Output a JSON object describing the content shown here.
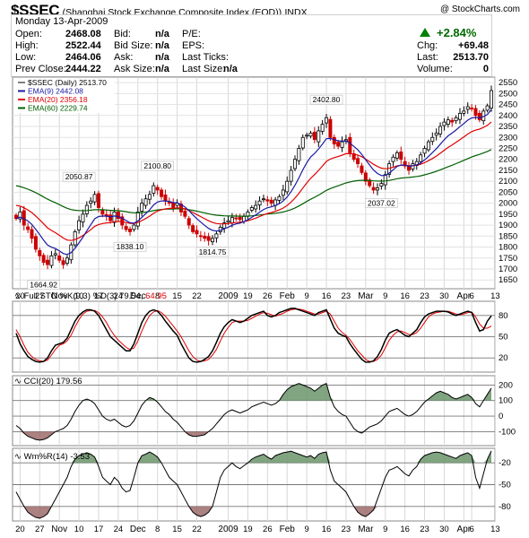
{
  "header": {
    "symbol": "$SSEC",
    "description": "(Shanghai Stock Exchange Composite Index (EOD))",
    "exchange": "INDX",
    "copyright": "@ StockCharts.com"
  },
  "quote": {
    "date": "Monday  13-Apr-2009",
    "open_label": "Open:",
    "open": "2468.08",
    "high_label": "High:",
    "high": "2522.44",
    "low_label": "Low:",
    "low": "2464.06",
    "prev_label": "Prev Close:",
    "prev": "2444.22",
    "bid_label": "Bid:",
    "bid": "n/a",
    "bidsize_label": "Bid Size:",
    "bidsize": "n/a",
    "ask_label": "Ask:",
    "ask": "n/a",
    "asksize_label": "Ask Size:",
    "asksize": "n/a",
    "pe_label": "P/E:",
    "eps_label": "EPS:",
    "lastticks_label": "Last Ticks:",
    "lastsize_label": "Last Size:",
    "lastsize": "n/a",
    "change_pct": "+2.84%",
    "chg_label": "Chg:",
    "chg": "+69.48",
    "last_label": "Last:",
    "last": "2513.70",
    "volume_label": "Volume:",
    "volume": "0"
  },
  "colors": {
    "up": "#000000",
    "down": "#cc0000",
    "ema20": "#e00000",
    "ema9": "#1a1aa6",
    "ema60": "#006000",
    "fill": "#5f8f5f"
  },
  "chart_data": [
    {
      "type": "line",
      "panel": "price",
      "legend": [
        "$SSEC (Daily) 2513.70",
        "EMA(9) 2442.08",
        "EMA(20) 2356.18",
        "EMA(60) 2229.74"
      ],
      "yticks": [
        1650,
        1700,
        1750,
        1800,
        1850,
        1900,
        1950,
        2000,
        2050,
        2100,
        2150,
        2200,
        2250,
        2300,
        2350,
        2400,
        2450,
        2500,
        2550
      ],
      "ylim": [
        1610,
        2575
      ],
      "xticks": [
        {
          "label": "20",
          "i": 1
        },
        {
          "label": "27",
          "i": 6
        },
        {
          "label": "Nov",
          "i": 11
        },
        {
          "label": "10",
          "i": 16
        },
        {
          "label": "17",
          "i": 21
        },
        {
          "label": "24",
          "i": 26
        },
        {
          "label": "Dec",
          "i": 31
        },
        {
          "label": "8",
          "i": 36
        },
        {
          "label": "15",
          "i": 41
        },
        {
          "label": "22",
          "i": 46
        },
        {
          "label": "2009",
          "i": 54
        },
        {
          "label": "19",
          "i": 59
        },
        {
          "label": "26",
          "i": 64
        },
        {
          "label": "Feb",
          "i": 69
        },
        {
          "label": "9",
          "i": 74
        },
        {
          "label": "16",
          "i": 79
        },
        {
          "label": "23",
          "i": 84
        },
        {
          "label": "Mar",
          "i": 89
        },
        {
          "label": "9",
          "i": 94
        },
        {
          "label": "16",
          "i": 99
        },
        {
          "label": "23",
          "i": 104
        },
        {
          "label": "30",
          "i": 109
        },
        {
          "label": "Apr",
          "i": 114
        },
        {
          "label": "6",
          "i": 116
        },
        {
          "label": "13",
          "i": 122
        }
      ],
      "price_labels": [
        {
          "text": "1664.92",
          "i": 7,
          "v": 1664.92,
          "pos": "below"
        },
        {
          "text": "2050.87",
          "i": 16,
          "v": 2050.87,
          "pos": "above"
        },
        {
          "text": "1838.10",
          "i": 29,
          "v": 1838.1,
          "pos": "below"
        },
        {
          "text": "2100.80",
          "i": 36,
          "v": 2100.8,
          "pos": "above"
        },
        {
          "text": "1814.75",
          "i": 50,
          "v": 1814.75,
          "pos": "below"
        },
        {
          "text": "2402.80",
          "i": 79,
          "v": 2402.8,
          "pos": "above"
        },
        {
          "text": "2037.02",
          "i": 93,
          "v": 2037.02,
          "pos": "below"
        }
      ],
      "close": [
        1930,
        1960,
        1900,
        1880,
        1840,
        1790,
        1760,
        1730,
        1720,
        1760,
        1770,
        1740,
        1720,
        1750,
        1810,
        1870,
        1920,
        1950,
        1990,
        2010,
        2040,
        1980,
        1950,
        1940,
        1920,
        1960,
        1930,
        1900,
        1880,
        1870,
        1900,
        1960,
        2000,
        2020,
        2040,
        2080,
        2060,
        2030,
        2010,
        2000,
        1980,
        2000,
        1960,
        1940,
        1900,
        1870,
        1860,
        1850,
        1840,
        1830,
        1840,
        1860,
        1890,
        1910,
        1920,
        1935,
        1930,
        1925,
        1940,
        1960,
        1980,
        1990,
        2010,
        2020,
        2010,
        2000,
        2015,
        2030,
        2060,
        2100,
        2150,
        2200,
        2250,
        2300,
        2310,
        2320,
        2290,
        2330,
        2360,
        2390,
        2300,
        2270,
        2260,
        2280,
        2290,
        2230,
        2200,
        2180,
        2140,
        2100,
        2080,
        2060,
        2070,
        2090,
        2130,
        2180,
        2210,
        2230,
        2200,
        2170,
        2150,
        2180,
        2190,
        2220,
        2250,
        2280,
        2300,
        2320,
        2350,
        2370,
        2380,
        2370,
        2390,
        2410,
        2420,
        2440,
        2430,
        2400,
        2380,
        2420,
        2444,
        2513.7
      ],
      "ema9_last": 2442.08,
      "ema20_last": 2356.18,
      "ema60_last": 2229.74
    },
    {
      "type": "line",
      "panel": "stochastics",
      "legend": "Full STO %K(9,3) %D(3) 79.54, 64.95",
      "yticks": [
        20,
        50,
        80
      ],
      "ylim": [
        0,
        100
      ],
      "k": [
        55,
        40,
        30,
        22,
        18,
        15,
        14,
        15,
        20,
        30,
        38,
        40,
        42,
        48,
        60,
        72,
        80,
        85,
        88,
        88,
        86,
        80,
        70,
        60,
        50,
        45,
        40,
        35,
        30,
        30,
        40,
        55,
        70,
        80,
        86,
        88,
        86,
        80,
        72,
        65,
        58,
        52,
        40,
        30,
        20,
        15,
        14,
        15,
        18,
        22,
        30,
        42,
        55,
        64,
        70,
        74,
        72,
        70,
        72,
        76,
        80,
        82,
        84,
        86,
        80,
        78,
        80,
        84,
        86,
        88,
        90,
        90,
        88,
        86,
        84,
        82,
        80,
        84,
        86,
        88,
        75,
        62,
        55,
        52,
        50,
        40,
        32,
        25,
        18,
        14,
        14,
        16,
        22,
        32,
        45,
        55,
        58,
        60,
        56,
        52,
        50,
        55,
        60,
        70,
        78,
        82,
        84,
        86,
        86,
        86,
        85,
        82,
        80,
        82,
        84,
        86,
        84,
        70,
        58,
        60,
        72,
        79.54
      ],
      "d": [
        60,
        50,
        38,
        28,
        22,
        18,
        16,
        15,
        17,
        24,
        32,
        38,
        40,
        44,
        52,
        64,
        74,
        82,
        86,
        87,
        87,
        84,
        78,
        70,
        60,
        52,
        45,
        40,
        35,
        32,
        34,
        44,
        58,
        70,
        80,
        85,
        87,
        84,
        79,
        72,
        65,
        58,
        50,
        40,
        30,
        22,
        17,
        15,
        16,
        18,
        24,
        32,
        44,
        55,
        63,
        70,
        72,
        72,
        72,
        73,
        76,
        79,
        82,
        84,
        83,
        81,
        79,
        81,
        83,
        86,
        88,
        89,
        89,
        88,
        86,
        84,
        82,
        82,
        84,
        86,
        82,
        72,
        62,
        56,
        52,
        46,
        38,
        30,
        24,
        18,
        15,
        15,
        18,
        24,
        34,
        45,
        52,
        57,
        58,
        56,
        53,
        53,
        56,
        62,
        70,
        78,
        82,
        84,
        85,
        86,
        86,
        84,
        82,
        81,
        82,
        84,
        85,
        78,
        68,
        62,
        62,
        64.95
      ]
    },
    {
      "type": "area",
      "panel": "cci",
      "legend": "CCI(20) 179.56",
      "yticks": [
        -100,
        0,
        100,
        200
      ],
      "ylim": [
        -190,
        260
      ],
      "values": [
        -60,
        -80,
        -110,
        -130,
        -140,
        -150,
        -155,
        -150,
        -140,
        -120,
        -100,
        -90,
        -80,
        -60,
        -20,
        30,
        70,
        100,
        110,
        100,
        80,
        40,
        0,
        -20,
        -30,
        -20,
        -40,
        -60,
        -70,
        -60,
        -30,
        20,
        70,
        100,
        120,
        110,
        90,
        60,
        30,
        10,
        -20,
        -40,
        -70,
        -100,
        -120,
        -130,
        -130,
        -125,
        -120,
        -100,
        -80,
        -50,
        -20,
        10,
        30,
        40,
        30,
        20,
        30,
        40,
        60,
        70,
        80,
        90,
        80,
        70,
        80,
        100,
        140,
        170,
        190,
        200,
        210,
        200,
        190,
        180,
        160,
        180,
        200,
        210,
        120,
        60,
        30,
        10,
        0,
        -40,
        -80,
        -100,
        -110,
        -90,
        -70,
        -60,
        -50,
        -30,
        0,
        30,
        40,
        50,
        30,
        10,
        0,
        10,
        30,
        60,
        90,
        110,
        130,
        150,
        160,
        150,
        140,
        120,
        110,
        120,
        130,
        140,
        120,
        80,
        60,
        100,
        140,
        179.56
      ]
    },
    {
      "type": "area",
      "panel": "williams",
      "legend": "Wm%R(14) -3.53",
      "yticks": [
        -80,
        -50,
        -20
      ],
      "ylim": [
        -100,
        0
      ],
      "values": [
        -60,
        -70,
        -80,
        -88,
        -92,
        -95,
        -96,
        -94,
        -90,
        -80,
        -70,
        -60,
        -50,
        -40,
        -25,
        -15,
        -10,
        -8,
        -6,
        -8,
        -12,
        -25,
        -40,
        -45,
        -50,
        -40,
        -45,
        -55,
        -60,
        -58,
        -40,
        -20,
        -10,
        -8,
        -5,
        -8,
        -12,
        -20,
        -30,
        -40,
        -45,
        -50,
        -60,
        -70,
        -80,
        -88,
        -92,
        -94,
        -92,
        -88,
        -80,
        -60,
        -40,
        -30,
        -25,
        -20,
        -25,
        -28,
        -24,
        -20,
        -15,
        -12,
        -10,
        -8,
        -12,
        -15,
        -10,
        -8,
        -6,
        -5,
        -4,
        -6,
        -8,
        -10,
        -12,
        -10,
        -14,
        -8,
        -6,
        -5,
        -30,
        -45,
        -50,
        -55,
        -60,
        -70,
        -80,
        -88,
        -92,
        -94,
        -90,
        -85,
        -70,
        -55,
        -40,
        -30,
        -28,
        -25,
        -30,
        -35,
        -38,
        -30,
        -25,
        -15,
        -10,
        -8,
        -6,
        -5,
        -6,
        -8,
        -10,
        -12,
        -14,
        -10,
        -8,
        -6,
        -10,
        -40,
        -55,
        -35,
        -15,
        -3.53
      ]
    }
  ]
}
